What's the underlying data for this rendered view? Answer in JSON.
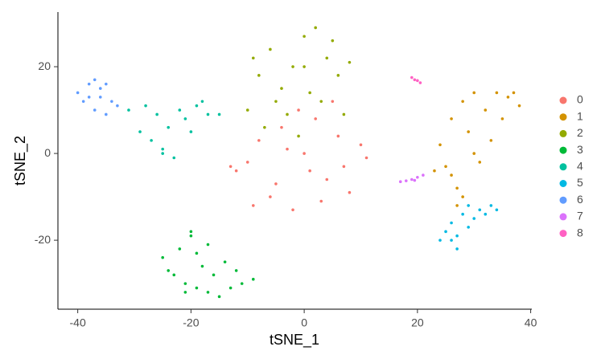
{
  "chart_data": {
    "type": "scatter",
    "x_label": "tSNE_1",
    "y_label": "tSNE_2",
    "xlim": [
      -43.5,
      40.2
    ],
    "ylim": [
      -35.9,
      32.6
    ],
    "xticks": [
      -40,
      -20,
      0,
      20,
      40
    ],
    "yticks": [
      -20,
      0,
      20
    ],
    "legend": "right",
    "series": [
      {
        "name": "0",
        "color": "#F8766D",
        "x": [
          -12,
          -10,
          -8,
          -6,
          -4,
          -2,
          0,
          2,
          4,
          6,
          8,
          10,
          -5,
          3,
          -1,
          7,
          -9,
          1,
          5,
          -3,
          11,
          -13
        ],
        "values": [
          -4,
          -2,
          3,
          -10,
          6,
          -13,
          0,
          8,
          -6,
          4,
          -9,
          2,
          -7,
          -11,
          10,
          -3,
          -12,
          -4,
          12,
          1,
          -1,
          -3
        ]
      },
      {
        "name": "1",
        "color": "#D39200",
        "x": [
          24,
          26,
          28,
          30,
          32,
          34,
          36,
          38,
          25,
          27,
          29,
          31,
          33,
          35,
          28,
          30,
          26,
          27,
          23,
          37
        ],
        "values": [
          2,
          8,
          12,
          14,
          10,
          14,
          13,
          11,
          -3,
          -8,
          5,
          -2,
          3,
          8,
          -10,
          0,
          -5,
          -12,
          -4,
          14
        ]
      },
      {
        "name": "2",
        "color": "#93AA00",
        "x": [
          -10,
          -8,
          -6,
          -4,
          -2,
          0,
          2,
          4,
          6,
          8,
          -7,
          -3,
          1,
          5,
          -1,
          3,
          -9,
          0,
          7,
          -5
        ],
        "values": [
          10,
          18,
          24,
          15,
          20,
          27,
          29,
          22,
          18,
          21,
          6,
          9,
          14,
          26,
          4,
          12,
          22,
          20,
          9,
          12
        ]
      },
      {
        "name": "3",
        "color": "#00BA38",
        "x": [
          -25,
          -23,
          -21,
          -19,
          -17,
          -15,
          -13,
          -11,
          -9,
          -22,
          -20,
          -18,
          -16,
          -14,
          -12,
          -21,
          -19,
          -24,
          -17,
          -20
        ],
        "values": [
          -24,
          -28,
          -30,
          -31,
          -32,
          -33,
          -31,
          -30,
          -29,
          -22,
          -19,
          -26,
          -28,
          -25,
          -27,
          -32,
          -23,
          -27,
          -21,
          -18
        ]
      },
      {
        "name": "4",
        "color": "#00C19F",
        "x": [
          -31,
          -29,
          -27,
          -25,
          -23,
          -21,
          -19,
          -17,
          -15,
          -28,
          -24,
          -22,
          -20,
          -26,
          -18,
          -25
        ],
        "values": [
          10,
          5,
          3,
          1,
          -1,
          8,
          11,
          9,
          9,
          11,
          6,
          10,
          5,
          9,
          12,
          0
        ]
      },
      {
        "name": "5",
        "color": "#00B9E3",
        "x": [
          24,
          25,
          26,
          27,
          28,
          29,
          30,
          31,
          32,
          33,
          34,
          27,
          29,
          26
        ],
        "values": [
          -20,
          -18,
          -16,
          -19,
          -14,
          -12,
          -15,
          -13,
          -14,
          -12,
          -13,
          -22,
          -17,
          -20
        ]
      },
      {
        "name": "6",
        "color": "#619CFF",
        "x": [
          -40,
          -39,
          -38,
          -37,
          -36,
          -35,
          -34,
          -33,
          -37,
          -36,
          -38,
          -35
        ],
        "values": [
          14,
          12,
          16,
          17,
          13,
          9,
          12,
          11,
          10,
          15,
          13,
          16
        ]
      },
      {
        "name": "7",
        "color": "#DB72FB",
        "x": [
          17,
          18,
          19,
          20,
          21,
          19.5
        ],
        "values": [
          -6.5,
          -6.3,
          -6,
          -5.5,
          -5,
          -6.2
        ]
      },
      {
        "name": "8",
        "color": "#FF61C3",
        "x": [
          19,
          19.5,
          20,
          20.5
        ],
        "values": [
          17.5,
          17,
          16.8,
          16.3
        ]
      }
    ]
  }
}
